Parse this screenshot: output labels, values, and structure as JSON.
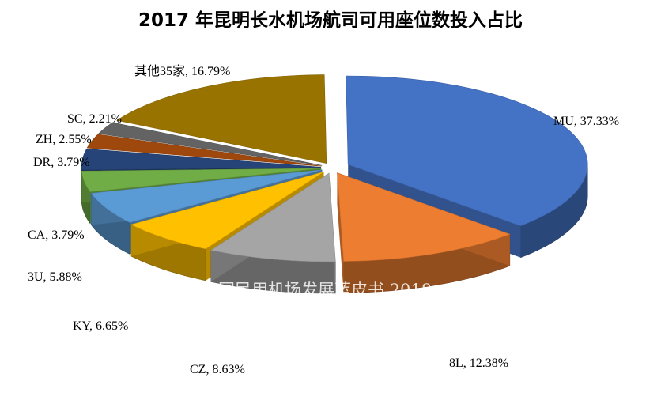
{
  "chart_data": {
    "type": "pie",
    "title": "2017 年昆明长水机场航司可用座位数投入占比",
    "watermark": "中国民用机场发展蓝皮书 2018",
    "slices": [
      {
        "name": "MU",
        "value": 37.33,
        "label": "MU, 37.33%",
        "color": "#4472C4"
      },
      {
        "name": "8L",
        "value": 12.38,
        "label": "8L, 12.38%",
        "color": "#ED7D31"
      },
      {
        "name": "CZ",
        "value": 8.63,
        "label": "CZ, 8.63%",
        "color": "#A5A5A5"
      },
      {
        "name": "KY",
        "value": 6.65,
        "label": "KY, 6.65%",
        "color": "#FFC000"
      },
      {
        "name": "3U",
        "value": 5.88,
        "label": "3U, 5.88%",
        "color": "#5B9BD5"
      },
      {
        "name": "CA",
        "value": 3.79,
        "label": "CA, 3.79%",
        "color": "#70AD47"
      },
      {
        "name": "DR",
        "value": 3.79,
        "label": "DR, 3.79%",
        "color": "#264478"
      },
      {
        "name": "ZH",
        "value": 2.55,
        "label": "ZH, 2.55%",
        "color": "#9E480E"
      },
      {
        "name": "SC",
        "value": 2.21,
        "label": "SC, 2.21%",
        "color": "#636363"
      },
      {
        "name": "其他35家",
        "value": 16.79,
        "label": "其他35家, 16.79%",
        "color": "#997300"
      }
    ]
  }
}
